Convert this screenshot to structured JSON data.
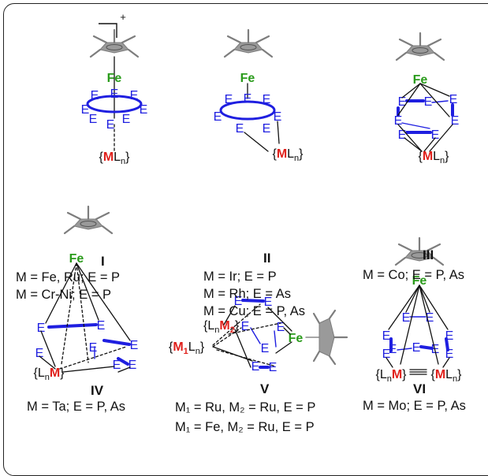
{
  "structures": [
    {
      "id": "I",
      "numeral": "I",
      "captions": [
        "M = Fe, Ru; E = P",
        "M = Cr-Ni; E = P"
      ],
      "charge": "+"
    },
    {
      "id": "II",
      "numeral": "II",
      "captions": [
        "M = Ir; E = P",
        "M = Rh; E = As",
        "M = Cu; E = P,  As"
      ]
    },
    {
      "id": "III",
      "numeral": "III",
      "captions": [
        "M = Co; E = P,  As"
      ]
    },
    {
      "id": "IV",
      "numeral": "IV",
      "captions": [
        "M = Ta; E = P,  As"
      ]
    },
    {
      "id": "V",
      "numeral": "V",
      "captions": [
        "M₁ = Ru, M₂ = Ru, E = P",
        "M₁ = Fe, M₂ = Ru, E = P"
      ]
    },
    {
      "id": "VI",
      "numeral": "VI",
      "captions": [
        "M = Mo; E = P,  As"
      ]
    }
  ],
  "labels": {
    "fe": "Fe",
    "e": "E",
    "m": "M",
    "l": "L",
    "n": "n",
    "m1": "M",
    "m1_sub": "1",
    "m2": "M",
    "m2_sub": "2"
  },
  "colors": {
    "E": "#1f1fe0",
    "Fe": "#2a9b1b",
    "M": "#e0201b",
    "Cp": "#7a7a7a"
  }
}
